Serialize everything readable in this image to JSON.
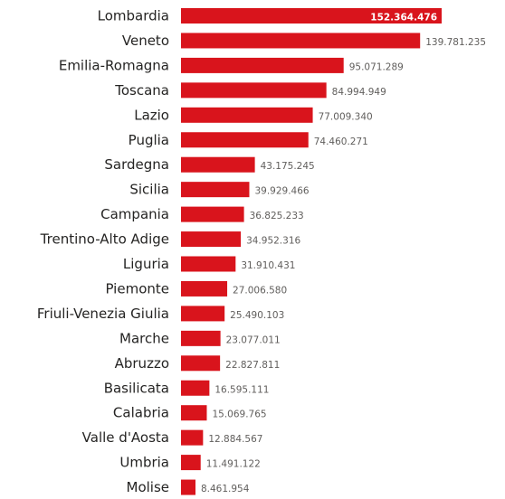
{
  "chart_data": {
    "type": "bar",
    "orientation": "horizontal",
    "title": "",
    "xlabel": "",
    "ylabel": "",
    "grid": false,
    "legend": "none",
    "bar_color": "#d9141c",
    "categories": [
      "Lombardia",
      "Veneto",
      "Emilia-Romagna",
      "Toscana",
      "Lazio",
      "Puglia",
      "Sardegna",
      "Sicilia",
      "Campania",
      "Trentino-Alto Adige",
      "Liguria",
      "Piemonte",
      "Friuli-Venezia Giulia",
      "Marche",
      "Abruzzo",
      "Basilicata",
      "Calabria",
      "Valle d'Aosta",
      "Umbria",
      "Molise"
    ],
    "values": [
      152364476,
      139781235,
      95071289,
      84994949,
      77009340,
      74460271,
      43175245,
      39929466,
      36825233,
      34952316,
      31910431,
      27006580,
      25490103,
      23077011,
      22827811,
      16595111,
      15069765,
      12884567,
      11491122,
      8461954
    ],
    "value_labels": [
      "152.364.476",
      "139.781.235",
      "95.071.289",
      "84.994.949",
      "77.009.340",
      "74.460.271",
      "43.175.245",
      "39.929.466",
      "36.825.233",
      "34.952.316",
      "31.910.431",
      "27.006.580",
      "25.490.103",
      "23.077.011",
      "22.827.811",
      "16.595.111",
      "15.069.765",
      "12.884.567",
      "11.491.122",
      "8.461.954"
    ]
  }
}
